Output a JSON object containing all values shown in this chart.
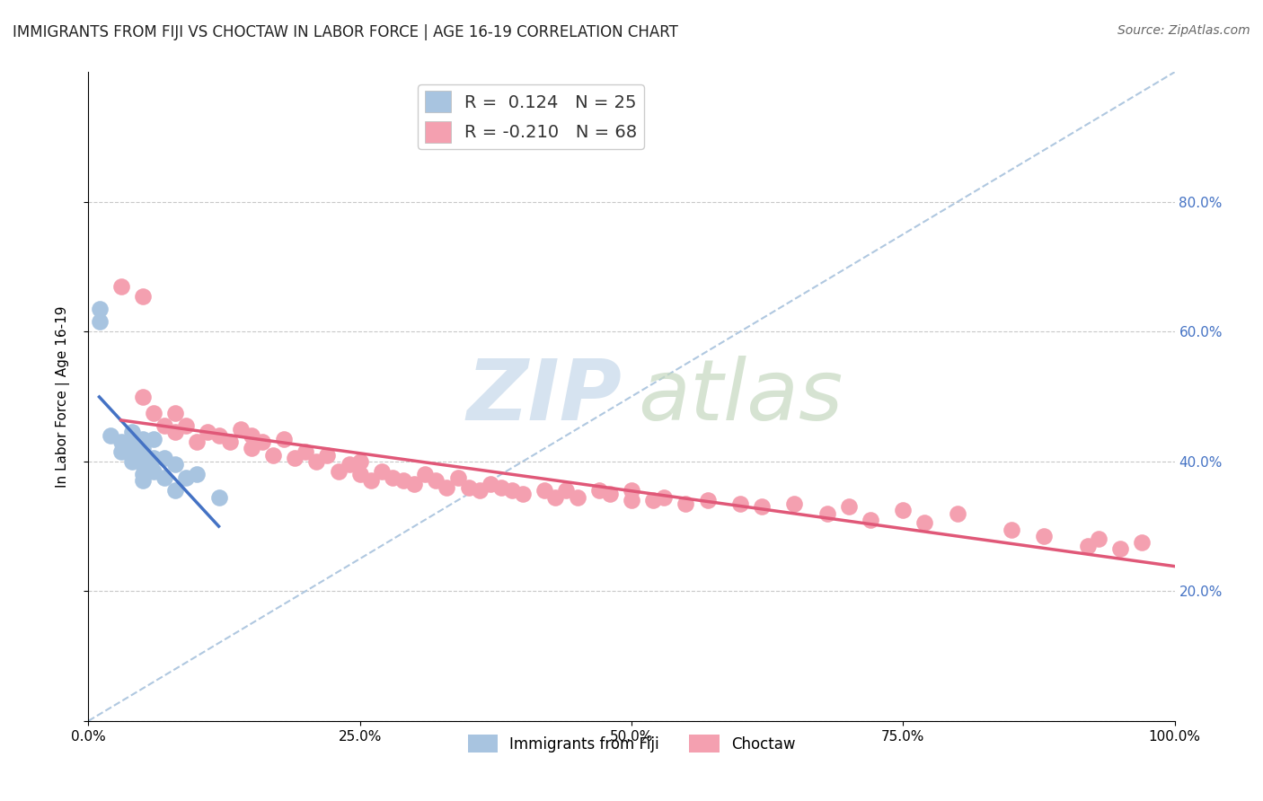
{
  "title": "IMMIGRANTS FROM FIJI VS CHOCTAW IN LABOR FORCE | AGE 16-19 CORRELATION CHART",
  "source": "Source: ZipAtlas.com",
  "ylabel": "In Labor Force | Age 16-19",
  "xlim": [
    0.0,
    1.0
  ],
  "ylim": [
    0.0,
    1.0
  ],
  "x_ticks": [
    0.0,
    0.25,
    0.5,
    0.75,
    1.0
  ],
  "x_tick_labels": [
    "0.0%",
    "25.0%",
    "50.0%",
    "75.0%",
    "100.0%"
  ],
  "y_ticks": [
    0.0,
    0.2,
    0.4,
    0.6,
    0.8
  ],
  "y_tick_labels_right": [
    "",
    "20.0%",
    "40.0%",
    "60.0%",
    "80.0%"
  ],
  "fiji_R": 0.124,
  "fiji_N": 25,
  "choctaw_R": -0.21,
  "choctaw_N": 68,
  "fiji_color": "#a8c4e0",
  "choctaw_color": "#f4a0b0",
  "fiji_line_color": "#4472c4",
  "choctaw_line_color": "#e05878",
  "ref_line_color": "#b0c8e0",
  "grid_color": "#c8c8c8",
  "background_color": "#ffffff",
  "fiji_points_x": [
    0.01,
    0.01,
    0.02,
    0.03,
    0.03,
    0.04,
    0.04,
    0.04,
    0.04,
    0.05,
    0.05,
    0.05,
    0.05,
    0.05,
    0.05,
    0.06,
    0.06,
    0.06,
    0.07,
    0.07,
    0.08,
    0.08,
    0.09,
    0.1,
    0.12
  ],
  "fiji_points_y": [
    0.635,
    0.615,
    0.44,
    0.43,
    0.415,
    0.445,
    0.43,
    0.415,
    0.4,
    0.435,
    0.42,
    0.41,
    0.395,
    0.38,
    0.37,
    0.435,
    0.405,
    0.385,
    0.405,
    0.375,
    0.395,
    0.355,
    0.375,
    0.38,
    0.345
  ],
  "choctaw_points_x": [
    0.03,
    0.05,
    0.05,
    0.06,
    0.07,
    0.08,
    0.08,
    0.09,
    0.1,
    0.11,
    0.12,
    0.13,
    0.14,
    0.15,
    0.15,
    0.16,
    0.17,
    0.18,
    0.19,
    0.2,
    0.21,
    0.22,
    0.23,
    0.24,
    0.25,
    0.25,
    0.26,
    0.27,
    0.28,
    0.29,
    0.3,
    0.31,
    0.32,
    0.33,
    0.34,
    0.35,
    0.36,
    0.37,
    0.38,
    0.39,
    0.4,
    0.42,
    0.43,
    0.44,
    0.45,
    0.47,
    0.48,
    0.5,
    0.5,
    0.52,
    0.53,
    0.55,
    0.57,
    0.6,
    0.62,
    0.65,
    0.68,
    0.7,
    0.72,
    0.75,
    0.77,
    0.8,
    0.85,
    0.88,
    0.92,
    0.93,
    0.95,
    0.97
  ],
  "choctaw_points_y": [
    0.67,
    0.655,
    0.5,
    0.475,
    0.455,
    0.475,
    0.445,
    0.455,
    0.43,
    0.445,
    0.44,
    0.43,
    0.45,
    0.42,
    0.44,
    0.43,
    0.41,
    0.435,
    0.405,
    0.415,
    0.4,
    0.41,
    0.385,
    0.395,
    0.38,
    0.4,
    0.37,
    0.385,
    0.375,
    0.37,
    0.365,
    0.38,
    0.37,
    0.36,
    0.375,
    0.36,
    0.355,
    0.365,
    0.36,
    0.355,
    0.35,
    0.355,
    0.345,
    0.355,
    0.345,
    0.355,
    0.35,
    0.34,
    0.355,
    0.34,
    0.345,
    0.335,
    0.34,
    0.335,
    0.33,
    0.335,
    0.32,
    0.33,
    0.31,
    0.325,
    0.305,
    0.32,
    0.295,
    0.285,
    0.27,
    0.28,
    0.265,
    0.275
  ]
}
